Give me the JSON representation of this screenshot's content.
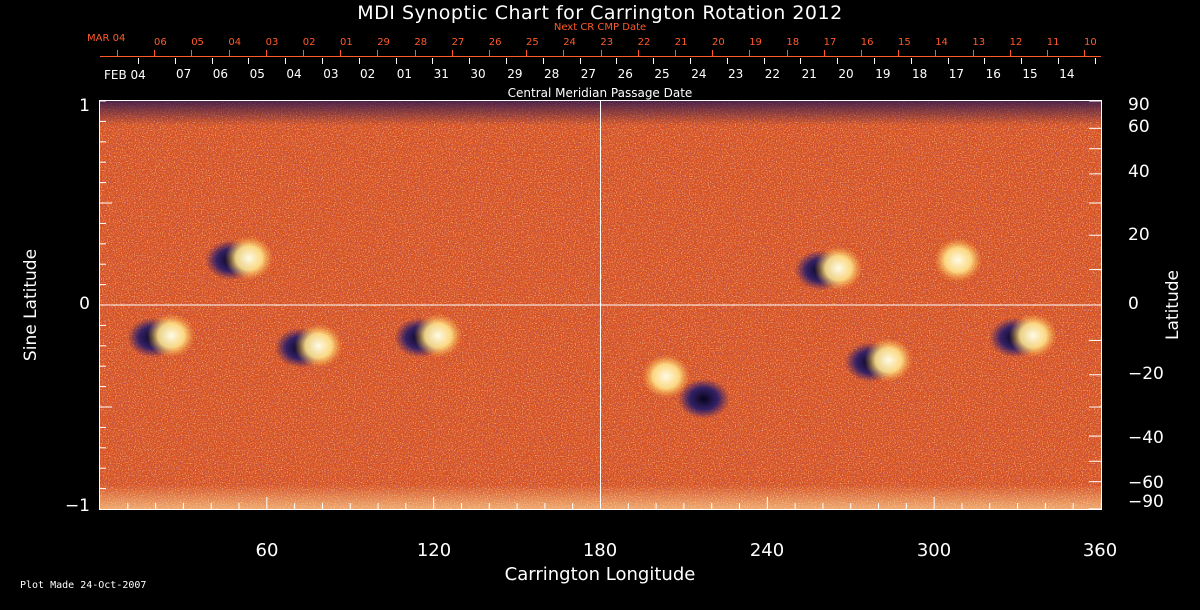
{
  "chart_data": {
    "type": "heatmap",
    "title": "MDI Synoptic Chart for Carrington Rotation 2012",
    "xlabel": "Carrington Longitude",
    "ylabel_left": "Sine Latitude",
    "ylabel_right": "Latitude",
    "xlim": [
      0,
      360
    ],
    "ylim": [
      -1,
      1
    ],
    "x_ticks": [
      "60",
      "120",
      "180",
      "240",
      "300",
      "360"
    ],
    "y_ticks_left": [
      "1",
      "0",
      "−1"
    ],
    "y_ticks_right": [
      "90",
      "60",
      "40",
      "20",
      "0",
      "−20",
      "−40",
      "−60",
      "−90"
    ],
    "top_axis": {
      "next_label": "Next CR CMP Date",
      "next_start": "MAR 04",
      "next_dates": [
        "06",
        "05",
        "04",
        "03",
        "02",
        "01",
        "29",
        "28",
        "27",
        "26",
        "25",
        "24",
        "23",
        "22",
        "21",
        "20",
        "19",
        "18",
        "17",
        "16",
        "15",
        "14",
        "13",
        "12",
        "11",
        "10"
      ],
      "cmp_label": "Central Meridian Passage Date",
      "cmp_start": "FEB 04",
      "cmp_dates": [
        "07",
        "06",
        "05",
        "04",
        "03",
        "02",
        "01",
        "31",
        "30",
        "29",
        "28",
        "27",
        "26",
        "25",
        "24",
        "23",
        "22",
        "21",
        "20",
        "19",
        "18",
        "17",
        "16",
        "15",
        "14"
      ]
    },
    "active_regions": [
      {
        "lon": 50,
        "sinlat": 0.23,
        "pol": "bipole"
      },
      {
        "lon": 22,
        "sinlat": -0.15,
        "pol": "bipole"
      },
      {
        "lon": 75,
        "sinlat": -0.2,
        "pol": "bipole"
      },
      {
        "lon": 118,
        "sinlat": -0.15,
        "pol": "bipole"
      },
      {
        "lon": 262,
        "sinlat": 0.18,
        "pol": "bipole"
      },
      {
        "lon": 305,
        "sinlat": 0.22,
        "pol": "positive"
      },
      {
        "lon": 280,
        "sinlat": -0.27,
        "pol": "bipole"
      },
      {
        "lon": 220,
        "sinlat": -0.45,
        "pol": "negative"
      },
      {
        "lon": 200,
        "sinlat": -0.35,
        "pol": "positive"
      },
      {
        "lon": 332,
        "sinlat": -0.15,
        "pol": "bipole"
      }
    ],
    "colors": {
      "background": "#d8501e",
      "positive": "#fff4c0",
      "negative": "#1a1450",
      "grid": "#ffffff"
    }
  },
  "footer": "Plot Made 24-Oct-2007"
}
